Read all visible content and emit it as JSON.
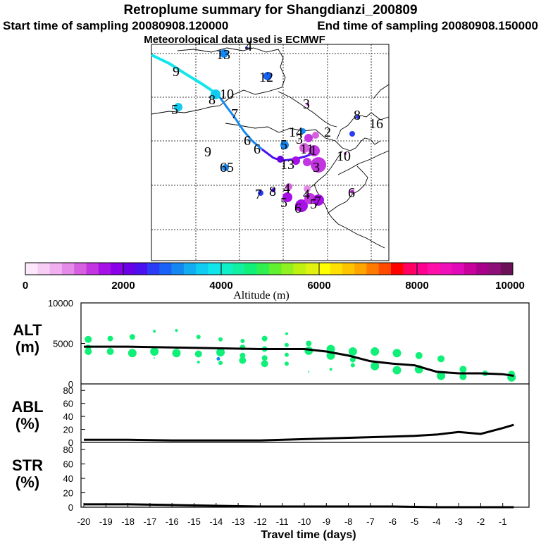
{
  "header": {
    "title": "Retroplume summary for Shangdianzi_200809",
    "start_time": "Start time of sampling 20080908.120000",
    "end_time": "End time of sampling 20080908.150000",
    "met_data": "Meteorological data used is ECMWF"
  },
  "colorbar": {
    "label": "Altitude (m)",
    "ticks": [
      "0",
      "2000",
      "4000",
      "6000",
      "8000",
      "10000"
    ],
    "colors": [
      "#fde8fb",
      "#f7cdf5",
      "#f0b0f0",
      "#e58ae8",
      "#d65fe0",
      "#c235e0",
      "#a710e6",
      "#8a00e8",
      "#6a00e6",
      "#4a10f0",
      "#2a3cf5",
      "#1a62f5",
      "#1488f0",
      "#10aef0",
      "#10ccf0",
      "#10e6ec",
      "#10f0c8",
      "#10f0a0",
      "#10f078",
      "#30f050",
      "#60f030",
      "#90f020",
      "#bef010",
      "#e0f010",
      "#ffff00",
      "#ffe000",
      "#ffc400",
      "#ffa500",
      "#ff7a00",
      "#ff4a00",
      "#ff0000",
      "#ff0060",
      "#ff0090",
      "#ff10a8",
      "#f010b8",
      "#e00ab8",
      "#c8009c",
      "#a80088",
      "#8c1078",
      "#6c1058"
    ]
  },
  "map": {
    "labels": [
      {
        "t": "9",
        "s": 30
      },
      {
        "t": "13",
        "s": 22
      },
      {
        "t": "4",
        "s": 14
      },
      {
        "t": "12",
        "s": 22
      },
      {
        "t": "10",
        "s": 22
      },
      {
        "t": "8",
        "s": 26
      },
      {
        "t": "5",
        "s": 22
      },
      {
        "t": "7",
        "s": 24
      },
      {
        "t": "3",
        "s": 18
      },
      {
        "t": "8",
        "s": 16
      },
      {
        "t": "16",
        "s": 18
      },
      {
        "t": "14",
        "s": 18
      },
      {
        "t": "2",
        "s": 18
      },
      {
        "t": "6",
        "s": 28
      },
      {
        "t": "3",
        "s": 18
      },
      {
        "t": "6",
        "s": 20
      },
      {
        "t": "9",
        "s": 20
      },
      {
        "t": "5",
        "s": 22
      },
      {
        "t": "11",
        "s": 22
      },
      {
        "t": "13",
        "s": 20
      },
      {
        "t": "1",
        "s": 22
      },
      {
        "t": "3",
        "s": 22
      },
      {
        "t": "10",
        "s": 24
      },
      {
        "t": "65",
        "s": 20
      },
      {
        "t": "4",
        "s": 18
      },
      {
        "t": "7",
        "s": 18
      },
      {
        "t": "8",
        "s": 18
      },
      {
        "t": "4",
        "s": 18
      },
      {
        "t": "5",
        "s": 22
      },
      {
        "t": "7",
        "s": 22
      },
      {
        "t": "6",
        "s": 24
      },
      {
        "t": "5",
        "s": 20
      },
      {
        "t": "6",
        "s": 20
      }
    ]
  },
  "chart_data": [
    {
      "type": "scatter",
      "name": "ALT",
      "ylabel_line1": "ALT",
      "ylabel_line2": "(m)",
      "yticks": [
        "10000",
        "5000",
        "0"
      ],
      "ylim": [
        0,
        10000
      ],
      "xlim": [
        -20,
        0
      ],
      "mean_line": {
        "x": [
          -20,
          -18,
          -16,
          -14,
          -12,
          -11,
          -10,
          -9,
          -8,
          -7,
          -6,
          -5,
          -4,
          -3,
          -2,
          -1,
          -0.5
        ],
        "y": [
          4600,
          4600,
          4500,
          4400,
          4300,
          4300,
          4300,
          4000,
          3500,
          2800,
          2500,
          2300,
          1500,
          1300,
          1300,
          1200,
          1000
        ]
      },
      "points": [
        {
          "x": -19.8,
          "y": 5500,
          "r": 5
        },
        {
          "x": -19.8,
          "y": 4500,
          "r": 4
        },
        {
          "x": -19.8,
          "y": 4000,
          "r": 5
        },
        {
          "x": -18.8,
          "y": 5600,
          "r": 4
        },
        {
          "x": -18.8,
          "y": 4000,
          "r": 5
        },
        {
          "x": -17.8,
          "y": 5800,
          "r": 4
        },
        {
          "x": -17.8,
          "y": 3800,
          "r": 6
        },
        {
          "x": -16.8,
          "y": 6500,
          "r": 2
        },
        {
          "x": -16.8,
          "y": 4000,
          "r": 6
        },
        {
          "x": -16.8,
          "y": 3200,
          "r": 1
        },
        {
          "x": -15.8,
          "y": 6600,
          "r": 2
        },
        {
          "x": -15.8,
          "y": 3800,
          "r": 6
        },
        {
          "x": -14.8,
          "y": 5800,
          "r": 3
        },
        {
          "x": -14.8,
          "y": 3700,
          "r": 5
        },
        {
          "x": -14.8,
          "y": 2700,
          "r": 2
        },
        {
          "x": -13.8,
          "y": 5500,
          "r": 3
        },
        {
          "x": -13.8,
          "y": 3900,
          "r": 6
        },
        {
          "x": -13.8,
          "y": 2600,
          "r": 3
        },
        {
          "x": -12.8,
          "y": 5300,
          "r": 3
        },
        {
          "x": -12.8,
          "y": 4500,
          "r": 4
        },
        {
          "x": -12.8,
          "y": 3500,
          "r": 4
        },
        {
          "x": -12.8,
          "y": 2900,
          "r": 5
        },
        {
          "x": -11.8,
          "y": 5600,
          "r": 4
        },
        {
          "x": -11.8,
          "y": 4300,
          "r": 4
        },
        {
          "x": -11.8,
          "y": 3200,
          "r": 4
        },
        {
          "x": -11.8,
          "y": 2500,
          "r": 5
        },
        {
          "x": -10.8,
          "y": 6200,
          "r": 2
        },
        {
          "x": -10.8,
          "y": 4800,
          "r": 3
        },
        {
          "x": -10.8,
          "y": 3600,
          "r": 3
        },
        {
          "x": -10.8,
          "y": 2500,
          "r": 3
        },
        {
          "x": -9.8,
          "y": 5000,
          "r": 4
        },
        {
          "x": -9.8,
          "y": 4100,
          "r": 6
        },
        {
          "x": -9.8,
          "y": 1500,
          "r": 1
        },
        {
          "x": -8.8,
          "y": 4300,
          "r": 6
        },
        {
          "x": -8.8,
          "y": 3500,
          "r": 6
        },
        {
          "x": -8.8,
          "y": 1800,
          "r": 2
        },
        {
          "x": -7.8,
          "y": 4000,
          "r": 6
        },
        {
          "x": -7.8,
          "y": 3000,
          "r": 4
        },
        {
          "x": -7.8,
          "y": 2300,
          "r": 3
        },
        {
          "x": -6.8,
          "y": 4000,
          "r": 6
        },
        {
          "x": -6.8,
          "y": 2200,
          "r": 6
        },
        {
          "x": -5.8,
          "y": 3800,
          "r": 6
        },
        {
          "x": -5.8,
          "y": 1700,
          "r": 6
        },
        {
          "x": -4.8,
          "y": 3500,
          "r": 5
        },
        {
          "x": -4.8,
          "y": 1800,
          "r": 6
        },
        {
          "x": -3.8,
          "y": 3100,
          "r": 5
        },
        {
          "x": -3.8,
          "y": 1000,
          "r": 6
        },
        {
          "x": -2.8,
          "y": 1800,
          "r": 5
        },
        {
          "x": -2.8,
          "y": 900,
          "r": 5
        },
        {
          "x": -1.8,
          "y": 1300,
          "r": 4
        },
        {
          "x": -0.6,
          "y": 1200,
          "r": 5
        },
        {
          "x": -0.6,
          "y": 800,
          "r": 6
        }
      ]
    },
    {
      "type": "line",
      "name": "ABL",
      "ylabel_line1": "ABL",
      "ylabel_line2": "(%)",
      "yticks": [
        "80",
        "60",
        "40",
        "20",
        "0"
      ],
      "ylim": [
        0,
        90
      ],
      "x": [
        -20,
        -18,
        -16,
        -14,
        -12,
        -10,
        -8,
        -6,
        -5,
        -4,
        -3,
        -2,
        -1,
        -0.5
      ],
      "values": [
        4,
        4,
        3,
        3,
        3,
        5,
        7,
        9,
        10,
        12,
        16,
        13,
        22,
        27
      ]
    },
    {
      "type": "line",
      "name": "STR",
      "ylabel_line1": "STR",
      "ylabel_line2": "(%)",
      "yticks": [
        "80",
        "60",
        "40",
        "20",
        "0"
      ],
      "ylim": [
        0,
        90
      ],
      "x": [
        -20,
        -18,
        -16,
        -14,
        -12,
        -10,
        -8,
        -6,
        -4,
        -2,
        -1,
        -0.5
      ],
      "values": [
        4,
        4,
        3,
        2,
        1,
        1,
        1,
        1,
        0,
        0,
        0,
        0
      ]
    }
  ],
  "xaxis": {
    "label": "Travel time (days)",
    "ticks": [
      "-20",
      "-19",
      "-18",
      "-17",
      "-16",
      "-15",
      "-14",
      "-13",
      "-12",
      "-11",
      "-10",
      "-9",
      "-8",
      "-7",
      "-6",
      "-5",
      "-4",
      "-3",
      "-2",
      "-1"
    ]
  }
}
